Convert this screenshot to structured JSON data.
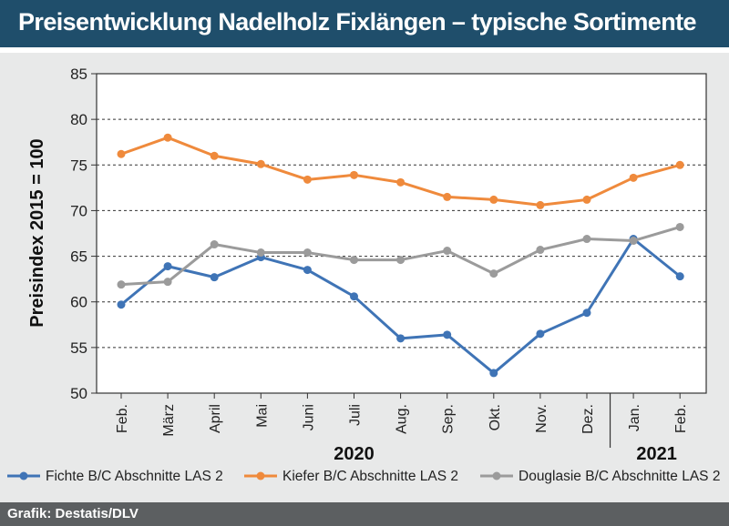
{
  "header": {
    "title": "Preisentwicklung Nadelholz Fixlängen – typische Sortimente"
  },
  "footer": {
    "credit": "Grafik: Destatis/DLV"
  },
  "colors": {
    "header_bg": "#1f4e6b",
    "panel_bg": "#e8e9e9",
    "footer_bg": "#5c5f61"
  },
  "chart_data": {
    "type": "line",
    "title": "Preisentwicklung Nadelholz Fixlängen – typische Sortimente",
    "ylabel": "Preisindex 2015 = 100",
    "xlabel": "",
    "ylim": [
      50,
      85
    ],
    "yticks": [
      50,
      55,
      60,
      65,
      70,
      75,
      80,
      85
    ],
    "grid": "horizontal dashed",
    "legend_position": "bottom",
    "categories": [
      "Feb.",
      "März",
      "April",
      "Mai",
      "Juni",
      "Juli",
      "Aug.",
      "Sep.",
      "Okt.",
      "Nov.",
      "Dez.",
      "Jan.",
      "Feb."
    ],
    "year_groups": [
      {
        "label": "2020",
        "start": 0,
        "end": 10
      },
      {
        "label": "2021",
        "start": 11,
        "end": 12
      }
    ],
    "series": [
      {
        "name": "Fichte B/C Abschnitte LAS 2",
        "color": "#3f74b6",
        "values": [
          59.7,
          63.9,
          62.7,
          64.9,
          63.5,
          60.6,
          56.0,
          56.4,
          52.2,
          56.5,
          58.8,
          66.9,
          62.8
        ]
      },
      {
        "name": "Kiefer B/C Abschnitte LAS 2",
        "color": "#ef8a3c",
        "values": [
          76.2,
          78.0,
          76.0,
          75.1,
          73.4,
          73.9,
          73.1,
          71.5,
          71.2,
          70.6,
          71.2,
          73.6,
          75.0
        ]
      },
      {
        "name": "Douglasie B/C Abschnitte LAS 2",
        "color": "#9b9b9b",
        "values": [
          61.9,
          62.2,
          66.3,
          65.4,
          65.4,
          64.6,
          64.6,
          65.6,
          63.1,
          65.7,
          66.9,
          66.7,
          68.2
        ]
      }
    ]
  }
}
